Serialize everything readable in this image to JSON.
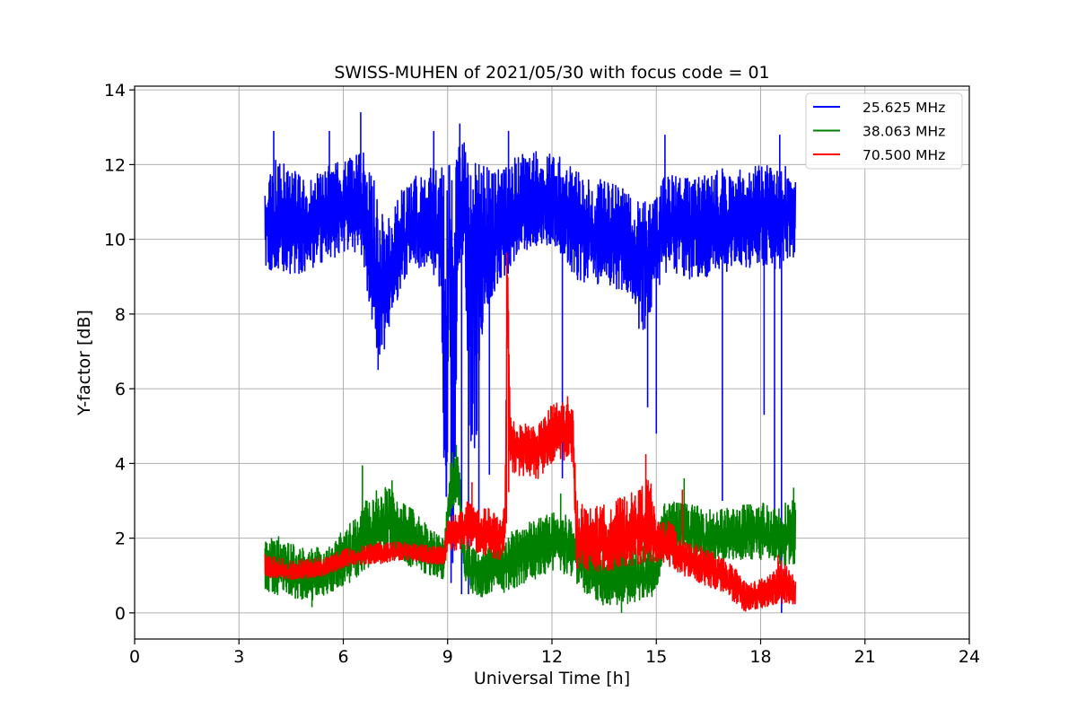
{
  "chart_data": {
    "type": "line",
    "title": "SWISS-MUHEN of 2021/05/30 with focus code = 01",
    "xlabel": "Universal Time [h]",
    "ylabel": "Y-factor [dB]",
    "xlim": [
      0,
      24
    ],
    "ylim": [
      -0.7,
      14.1
    ],
    "xticks": [
      0,
      3,
      6,
      9,
      12,
      15,
      18,
      21,
      24
    ],
    "xtick_labels": [
      "0",
      "3",
      "6",
      "9",
      "12",
      "15",
      "18",
      "21",
      "24"
    ],
    "yticks": [
      0,
      2,
      4,
      6,
      8,
      10,
      12,
      14
    ],
    "ytick_labels": [
      "0",
      "2",
      "4",
      "6",
      "8",
      "10",
      "12",
      "14"
    ],
    "grid": true,
    "legend_position": "top-right",
    "series": [
      {
        "name": "25.625 MHz",
        "color": "#0000ff",
        "x": [
          3.75,
          4.0,
          4.5,
          5.0,
          5.5,
          6.0,
          6.5,
          6.8,
          7.0,
          7.2,
          7.5,
          7.8,
          8.0,
          8.5,
          8.8,
          8.95,
          9.05,
          9.15,
          9.3,
          9.5,
          9.65,
          9.8,
          10.0,
          10.2,
          10.5,
          10.8,
          11.0,
          11.5,
          12.0,
          12.3,
          12.6,
          13.0,
          13.5,
          14.0,
          14.3,
          14.6,
          14.8,
          15.0,
          15.2,
          15.5,
          15.8,
          16.0,
          16.5,
          16.9,
          17.0,
          17.5,
          18.0,
          18.3,
          18.55,
          18.7,
          19.0
        ],
        "y": [
          10.6,
          10.4,
          10.3,
          10.5,
          10.6,
          10.8,
          10.9,
          10.0,
          8.7,
          8.4,
          9.5,
          10.1,
          10.3,
          10.4,
          10.0,
          6.0,
          10.5,
          4.0,
          10.5,
          10.8,
          9.0,
          9.3,
          9.8,
          9.7,
          10.0,
          10.3,
          10.6,
          10.8,
          10.8,
          10.7,
          10.5,
          10.2,
          10.0,
          9.9,
          9.7,
          9.6,
          9.4,
          9.8,
          10.4,
          10.4,
          10.3,
          10.2,
          10.4,
          10.5,
          10.4,
          10.5,
          10.6,
          10.6,
          10.4,
          10.6,
          10.5
        ],
        "y_spread_low": [
          9.3,
          9.1,
          9.0,
          9.2,
          9.4,
          9.6,
          9.7,
          8.0,
          6.8,
          7.0,
          8.2,
          9.0,
          9.2,
          9.2,
          8.6,
          0.5,
          9.0,
          0.7,
          8.8,
          9.1,
          4.0,
          4.0,
          7.0,
          8.3,
          8.9,
          9.1,
          9.6,
          9.8,
          9.8,
          9.6,
          9.0,
          8.7,
          8.8,
          8.6,
          8.3,
          7.0,
          8.0,
          8.5,
          9.0,
          9.1,
          9.0,
          8.9,
          9.0,
          9.2,
          9.1,
          9.2,
          9.3,
          9.3,
          9.1,
          9.4,
          9.3
        ],
        "y_spread_high": [
          11.9,
          12.3,
          11.9,
          11.6,
          12.0,
          12.1,
          12.5,
          12.0,
          11.0,
          10.5,
          11.1,
          11.5,
          11.7,
          11.9,
          11.9,
          12.0,
          12.1,
          11.4,
          12.5,
          12.7,
          12.3,
          12.1,
          12.0,
          11.9,
          12.0,
          12.1,
          12.3,
          12.4,
          12.3,
          12.2,
          12.0,
          11.6,
          11.6,
          11.4,
          11.2,
          11.0,
          11.0,
          11.3,
          11.7,
          11.8,
          11.7,
          11.6,
          11.8,
          11.9,
          11.8,
          11.9,
          12.0,
          12.0,
          11.8,
          12.0,
          11.8
        ],
        "spikes": [
          {
            "x": 4.0,
            "y": 12.9
          },
          {
            "x": 5.6,
            "y": 12.9
          },
          {
            "x": 6.5,
            "y": 13.4
          },
          {
            "x": 8.6,
            "y": 12.9
          },
          {
            "x": 9.35,
            "y": 13.1
          },
          {
            "x": 10.75,
            "y": 12.9
          },
          {
            "x": 15.25,
            "y": 12.8
          },
          {
            "x": 18.55,
            "y": 12.8
          },
          {
            "x": 7.0,
            "y": 6.5
          },
          {
            "x": 9.4,
            "y": 0.5
          },
          {
            "x": 9.1,
            "y": 0.8
          },
          {
            "x": 9.6,
            "y": 0.5
          },
          {
            "x": 9.9,
            "y": 2.2
          },
          {
            "x": 10.2,
            "y": 3.7
          },
          {
            "x": 12.3,
            "y": 3.6
          },
          {
            "x": 14.75,
            "y": 5.5
          },
          {
            "x": 15.0,
            "y": 4.8
          },
          {
            "x": 16.9,
            "y": 3.0
          },
          {
            "x": 18.1,
            "y": 5.3
          },
          {
            "x": 18.4,
            "y": 2.7
          },
          {
            "x": 18.6,
            "y": 0.0
          }
        ]
      },
      {
        "name": "38.063 MHz",
        "color": "#008000",
        "x": [
          3.75,
          4.0,
          4.5,
          5.0,
          5.5,
          6.0,
          6.5,
          6.8,
          7.0,
          7.3,
          7.6,
          8.0,
          8.5,
          8.9,
          9.1,
          9.3,
          9.5,
          9.7,
          10.0,
          10.5,
          11.0,
          11.5,
          12.0,
          12.5,
          12.8,
          13.0,
          13.5,
          14.0,
          14.5,
          15.0,
          15.2,
          15.5,
          16.0,
          16.5,
          17.0,
          17.5,
          18.0,
          18.5,
          19.0
        ],
        "y": [
          1.3,
          1.2,
          1.1,
          1.0,
          1.1,
          1.4,
          1.8,
          2.0,
          2.2,
          2.4,
          2.2,
          2.0,
          1.6,
          1.4,
          3.5,
          3.6,
          1.3,
          1.1,
          1.0,
          1.2,
          1.5,
          1.7,
          1.9,
          1.8,
          1.4,
          1.2,
          1.0,
          1.0,
          1.0,
          1.0,
          2.2,
          2.3,
          2.2,
          2.0,
          2.0,
          2.1,
          2.1,
          2.0,
          2.0
        ],
        "y_spread_low": [
          0.6,
          0.5,
          0.4,
          0.3,
          0.5,
          0.7,
          1.0,
          1.2,
          1.4,
          1.6,
          1.4,
          1.2,
          1.0,
          0.9,
          2.8,
          2.9,
          0.7,
          0.5,
          0.4,
          0.5,
          0.7,
          0.9,
          1.1,
          1.0,
          0.7,
          0.4,
          0.2,
          0.2,
          0.3,
          0.4,
          1.5,
          1.6,
          1.5,
          1.3,
          1.4,
          1.4,
          1.4,
          1.3,
          1.2
        ],
        "y_spread_high": [
          1.9,
          2.1,
          1.9,
          1.7,
          1.8,
          2.2,
          2.8,
          3.2,
          3.3,
          3.4,
          3.1,
          2.8,
          2.3,
          2.0,
          4.4,
          4.3,
          2.0,
          1.8,
          1.7,
          1.9,
          2.3,
          2.5,
          2.7,
          2.6,
          2.1,
          1.9,
          1.8,
          1.8,
          1.8,
          1.9,
          3.0,
          3.0,
          2.9,
          2.8,
          2.8,
          2.9,
          3.0,
          2.9,
          3.1
        ],
        "spikes": [
          {
            "x": 6.55,
            "y": 3.95
          },
          {
            "x": 7.4,
            "y": 3.55
          },
          {
            "x": 9.25,
            "y": 4.5
          },
          {
            "x": 12.25,
            "y": 3.2
          },
          {
            "x": 15.8,
            "y": 3.6
          },
          {
            "x": 18.95,
            "y": 3.35
          },
          {
            "x": 5.1,
            "y": 0.15
          },
          {
            "x": 14.0,
            "y": 0.0
          }
        ]
      },
      {
        "name": "70.500 MHz",
        "color": "#ff0000",
        "x": [
          3.75,
          4.0,
          4.5,
          5.0,
          5.5,
          6.0,
          6.5,
          7.0,
          7.5,
          8.0,
          8.5,
          8.9,
          9.0,
          9.3,
          9.6,
          9.9,
          10.2,
          10.5,
          10.65,
          10.72,
          10.8,
          11.0,
          11.3,
          11.6,
          12.0,
          12.3,
          12.6,
          12.7,
          13.0,
          13.5,
          14.0,
          14.5,
          14.8,
          15.0,
          15.3,
          15.6,
          16.0,
          16.5,
          17.0,
          17.3,
          17.6,
          18.0,
          18.3,
          18.6,
          19.0
        ],
        "y": [
          1.2,
          1.15,
          1.1,
          1.15,
          1.2,
          1.4,
          1.5,
          1.55,
          1.6,
          1.6,
          1.5,
          1.5,
          2.0,
          2.1,
          2.2,
          2.1,
          2.0,
          1.9,
          2.2,
          9.6,
          4.5,
          4.4,
          4.5,
          4.3,
          4.8,
          4.9,
          4.7,
          2.0,
          1.8,
          1.9,
          2.0,
          2.2,
          2.3,
          1.8,
          1.9,
          1.6,
          1.4,
          1.2,
          0.9,
          0.6,
          0.4,
          0.5,
          0.6,
          0.65,
          0.6
        ],
        "y_spread_low": [
          0.9,
          0.9,
          0.9,
          0.9,
          1.0,
          1.2,
          1.3,
          1.3,
          1.4,
          1.4,
          1.3,
          1.3,
          1.6,
          1.7,
          1.7,
          1.6,
          1.5,
          1.4,
          1.7,
          2.0,
          3.8,
          3.7,
          3.6,
          3.5,
          4.0,
          4.1,
          4.0,
          1.2,
          1.1,
          1.1,
          1.2,
          1.3,
          1.4,
          1.3,
          1.3,
          1.1,
          0.9,
          0.7,
          0.5,
          0.2,
          0.0,
          0.1,
          0.2,
          0.25,
          0.2
        ],
        "y_spread_high": [
          1.6,
          1.5,
          1.4,
          1.5,
          1.5,
          1.7,
          1.8,
          1.9,
          1.9,
          1.9,
          1.8,
          1.8,
          2.6,
          2.7,
          3.0,
          2.8,
          2.8,
          2.6,
          3.0,
          9.6,
          5.5,
          5.0,
          5.1,
          5.0,
          5.6,
          5.7,
          5.5,
          3.2,
          2.8,
          2.9,
          3.1,
          3.3,
          3.8,
          2.4,
          2.6,
          2.2,
          1.9,
          1.7,
          1.4,
          1.2,
          0.8,
          0.9,
          1.1,
          1.5,
          0.9
        ],
        "spikes": [
          {
            "x": 10.7,
            "y": 9.65
          },
          {
            "x": 9.7,
            "y": 3.5
          },
          {
            "x": 12.45,
            "y": 5.8
          },
          {
            "x": 14.7,
            "y": 4.25
          },
          {
            "x": 15.75,
            "y": 3.3
          },
          {
            "x": 18.5,
            "y": 1.55
          }
        ]
      }
    ]
  }
}
